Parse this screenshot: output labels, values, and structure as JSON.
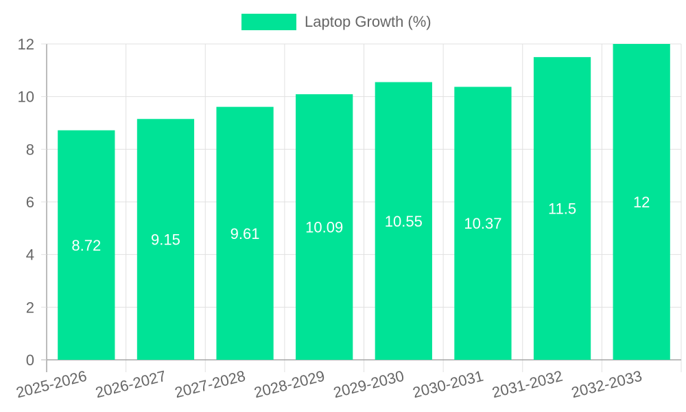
{
  "chart_data": {
    "type": "bar",
    "title": "",
    "xlabel": "",
    "ylabel": "",
    "ylim": [
      0,
      12
    ],
    "yticks": [
      0,
      2,
      4,
      6,
      8,
      10,
      12
    ],
    "categories": [
      "2025-2026",
      "2026-2027",
      "2027-2028",
      "2028-2029",
      "2029-2030",
      "2030-2031",
      "2031-2032",
      "2032-2033"
    ],
    "series": [
      {
        "name": "Laptop Growth (%)",
        "values": [
          8.72,
          9.15,
          9.61,
          10.09,
          10.55,
          10.37,
          11.5,
          12
        ],
        "color": "#00e396"
      }
    ],
    "data_labels": [
      "8.72",
      "9.15",
      "9.61",
      "10.09",
      "10.55",
      "10.37",
      "11.5",
      "12"
    ],
    "legend_position": "top-center",
    "grid": true,
    "colors": {
      "grid": "#e0e0e0",
      "axis": "#a6a6a6",
      "tick_text": "#666666",
      "legend_text": "#666666",
      "data_label": "#ffffff"
    }
  }
}
